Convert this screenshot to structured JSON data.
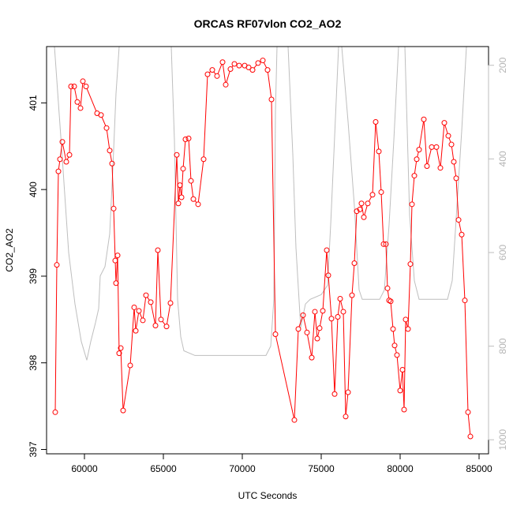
{
  "chart_data": {
    "type": "line",
    "title": "ORCAS RF07vlon CO2_AO2",
    "xlabel": "UTC Seconds",
    "ylabel": "CO2_AO2",
    "xlim": [
      57600,
      85600
    ],
    "ylim": [
      396.95,
      401.65
    ],
    "xticks": [
      60000,
      65000,
      70000,
      75000,
      80000,
      85000
    ],
    "yticks": [
      397,
      398,
      399,
      400,
      401
    ],
    "y2lim": [
      1030,
      160
    ],
    "y2ticks": [
      200,
      400,
      600,
      800,
      1000
    ],
    "colors": {
      "co2": "#ff0000",
      "altitude": "#bebebe"
    },
    "series": [
      {
        "key": "co2",
        "x": [
          58150,
          58250,
          58350,
          58450,
          58600,
          58850,
          59050,
          59150,
          59350,
          59550,
          59750,
          59900,
          60100,
          60800,
          61050,
          61400,
          61600,
          61750,
          61850,
          61950,
          62000,
          62100,
          62200,
          62300,
          62450,
          62900,
          63150,
          63250,
          63450,
          63700,
          63900,
          64200,
          64500,
          64650,
          64850,
          65200,
          65450,
          65850,
          65950,
          66050,
          66150,
          66250,
          66400,
          66600,
          66750,
          66900,
          67200,
          67550,
          67800,
          68100,
          68400,
          68750,
          68950,
          69250,
          69500,
          69800,
          70150,
          70400,
          70650,
          71000,
          71300,
          71600,
          71850,
          72100,
          73300,
          73550,
          73850,
          74100,
          74400,
          74600,
          74750,
          74900,
          75100,
          75350,
          75450,
          75650,
          75850,
          76050,
          76200,
          76400,
          76550,
          76700,
          76950,
          77100,
          77250,
          77450,
          77550,
          77700,
          77950,
          78250,
          78450,
          78650,
          78800,
          78950,
          79100,
          79200,
          79300,
          79400,
          79550,
          79650,
          79800,
          80000,
          80150,
          80250,
          80350,
          80500,
          80650,
          80750,
          80900,
          81050,
          81200,
          81500,
          81700,
          82000,
          82300,
          82550,
          82800,
          83050,
          83250,
          83400,
          83550,
          83700,
          83900,
          84100,
          84300,
          84450
        ],
        "y": [
          397.43,
          399.13,
          400.21,
          400.35,
          400.55,
          400.32,
          400.4,
          401.19,
          401.19,
          401.01,
          400.94,
          401.25,
          401.19,
          400.88,
          400.86,
          400.71,
          400.45,
          400.3,
          399.78,
          399.18,
          398.92,
          399.24,
          398.11,
          398.17,
          397.45,
          397.97,
          398.64,
          398.37,
          398.6,
          398.49,
          398.78,
          398.7,
          398.43,
          399.3,
          398.5,
          398.42,
          398.69,
          400.4,
          399.84,
          400.05,
          399.91,
          400.24,
          400.58,
          400.59,
          400.1,
          399.89,
          399.83,
          400.35,
          401.33,
          401.38,
          401.31,
          401.47,
          401.21,
          401.39,
          401.45,
          401.43,
          401.43,
          401.41,
          401.38,
          401.46,
          401.49,
          401.38,
          401.04,
          398.33,
          397.34,
          398.39,
          398.55,
          398.35,
          398.06,
          398.59,
          398.28,
          398.4,
          398.6,
          399.3,
          399.01,
          398.51,
          397.64,
          398.53,
          398.74,
          398.59,
          397.38,
          397.66,
          398.78,
          399.15,
          399.75,
          399.77,
          399.84,
          399.68,
          399.84,
          399.94,
          400.78,
          400.44,
          399.97,
          399.37,
          399.37,
          398.86,
          398.72,
          398.71,
          398.39,
          398.2,
          398.09,
          397.68,
          397.92,
          397.46,
          398.5,
          398.39,
          399.14,
          399.83,
          400.16,
          400.35,
          400.46,
          400.81,
          400.27,
          400.49,
          400.49,
          400.25,
          400.77,
          400.62,
          400.52,
          400.32,
          400.13,
          399.65,
          399.48,
          398.72,
          397.43,
          397.15
        ]
      },
      {
        "key": "altitude",
        "x": [
          58100,
          58600,
          59000,
          59400,
          59800,
          60150,
          60400,
          60700,
          60900,
          61000,
          61300,
          61600,
          61800,
          62000,
          62200,
          65500,
          65700,
          65900,
          66100,
          66300,
          67000,
          70000,
          71500,
          71800,
          72000,
          72100,
          72200,
          72900,
          73200,
          73400,
          73700,
          74000,
          74300,
          75000,
          75400,
          75600,
          75800,
          76100,
          76300,
          76700,
          77100,
          77400,
          77600,
          77900,
          78200,
          78700,
          79000,
          79300,
          79600,
          79900,
          80300,
          80600,
          80900,
          81200,
          81500,
          83000,
          83300,
          83600,
          83900,
          84200,
          84500
        ],
        "y": [
          160,
          400,
          600,
          710,
          790,
          830,
          790,
          750,
          720,
          650,
          630,
          560,
          420,
          260,
          160,
          160,
          360,
          700,
          780,
          810,
          820,
          820,
          820,
          800,
          700,
          300,
          160,
          160,
          390,
          590,
          760,
          710,
          700,
          690,
          670,
          540,
          390,
          160,
          160,
          320,
          500,
          680,
          700,
          700,
          700,
          700,
          680,
          540,
          360,
          160,
          160,
          520,
          660,
          700,
          700,
          700,
          660,
          500,
          340,
          160,
          160
        ]
      }
    ]
  }
}
